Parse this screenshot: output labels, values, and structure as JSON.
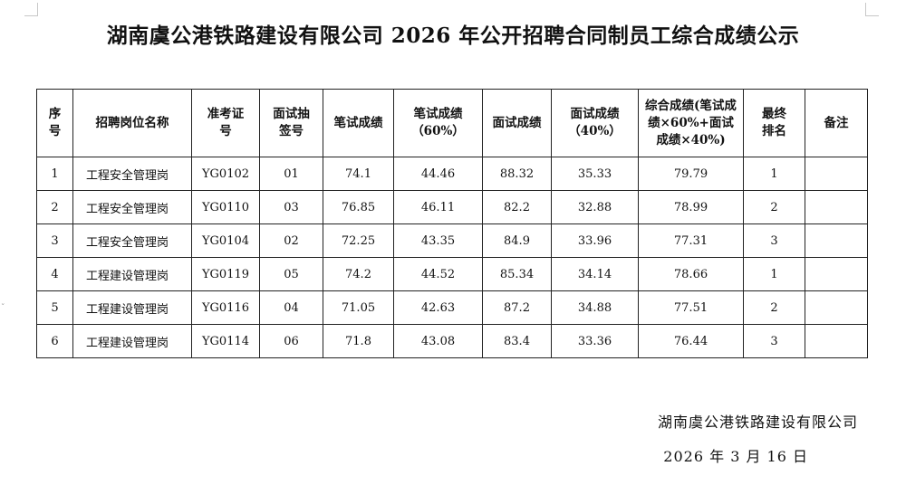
{
  "title": "湖南虞公港铁路建设有限公司 2026 年公开招聘合同制员工综合成绩公示",
  "side_mark": "ˇ",
  "table": {
    "headers": [
      "序号",
      "招聘岗位名称",
      "准考证号",
      "面试抽签号",
      "笔试成绩",
      "笔试成绩（60%）",
      "面试成绩",
      "面试成绩（40%）",
      "综合成绩(笔试成绩×60%+面试成绩×40%)",
      "最终排名",
      "备注"
    ],
    "rows": [
      {
        "no": "1",
        "position": "工程安全管理岗",
        "exam_id": "YG0102",
        "draw": "01",
        "written": "74.1",
        "written60": "44.46",
        "interview": "88.32",
        "interview40": "35.33",
        "total": "79.79",
        "rank": "1",
        "note": ""
      },
      {
        "no": "2",
        "position": "工程安全管理岗",
        "exam_id": "YG0110",
        "draw": "03",
        "written": "76.85",
        "written60": "46.11",
        "interview": "82.2",
        "interview40": "32.88",
        "total": "78.99",
        "rank": "2",
        "note": ""
      },
      {
        "no": "3",
        "position": "工程安全管理岗",
        "exam_id": "YG0104",
        "draw": "02",
        "written": "72.25",
        "written60": "43.35",
        "interview": "84.9",
        "interview40": "33.96",
        "total": "77.31",
        "rank": "3",
        "note": ""
      },
      {
        "no": "4",
        "position": "工程建设管理岗",
        "exam_id": "YG0119",
        "draw": "05",
        "written": "74.2",
        "written60": "44.52",
        "interview": "85.34",
        "interview40": "34.14",
        "total": "78.66",
        "rank": "1",
        "note": ""
      },
      {
        "no": "5",
        "position": "工程建设管理岗",
        "exam_id": "YG0116",
        "draw": "04",
        "written": "71.05",
        "written60": "42.63",
        "interview": "87.2",
        "interview40": "34.88",
        "total": "77.51",
        "rank": "2",
        "note": ""
      },
      {
        "no": "6",
        "position": "工程建设管理岗",
        "exam_id": "YG0114",
        "draw": "06",
        "written": "71.8",
        "written60": "43.08",
        "interview": "83.4",
        "interview40": "33.36",
        "total": "76.44",
        "rank": "3",
        "note": ""
      }
    ]
  },
  "footer": {
    "organization": "湖南虞公港铁路建设有限公司",
    "date": "2026 年 3 月 16 日"
  }
}
